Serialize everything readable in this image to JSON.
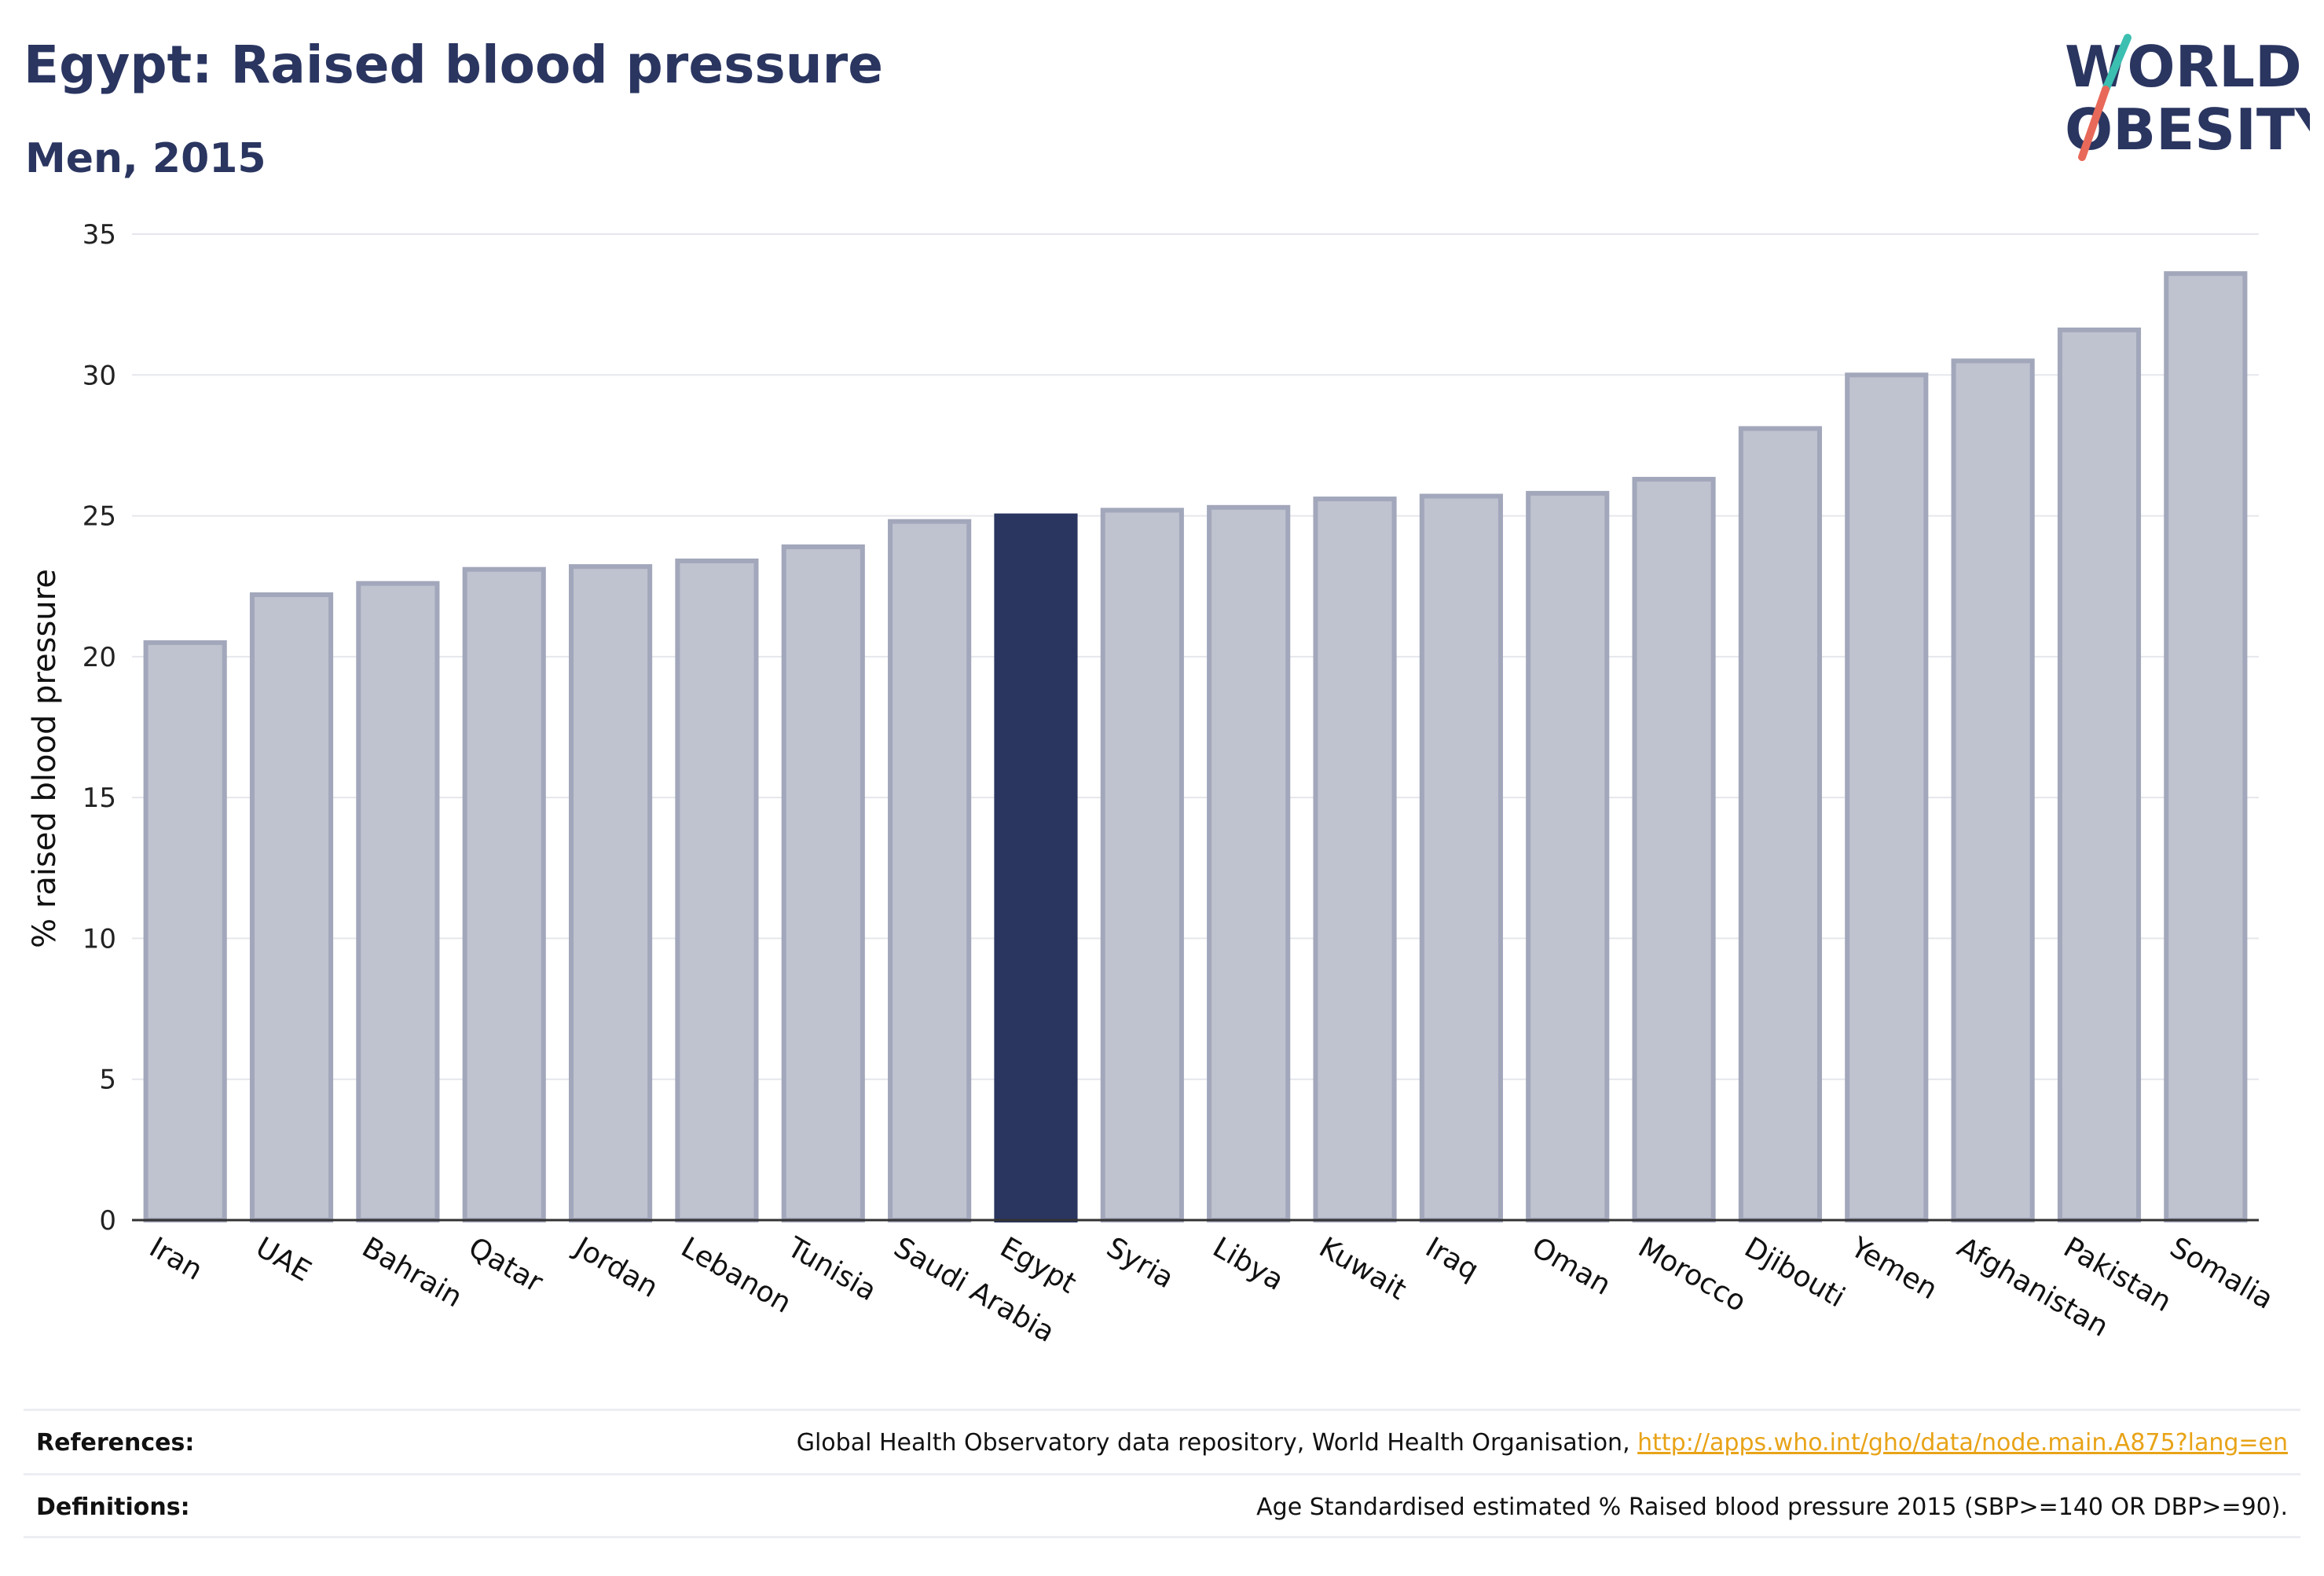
{
  "header": {
    "title": "Egypt: Raised blood pressure",
    "subtitle": "Men, 2015",
    "logo_line1": "WORLD",
    "logo_line2": "OBESITY"
  },
  "colors": {
    "highlight": "#2a3560",
    "bar": "#bfc2cf",
    "bar_border": "#a2a7bb",
    "title": "#2a3560",
    "link": "#e8a317",
    "logo_teal": "#3bbfb1",
    "logo_red": "#e8695a"
  },
  "chart_data": {
    "type": "bar",
    "categories": [
      "Iran",
      "UAE",
      "Bahrain",
      "Qatar",
      "Jordan",
      "Lebanon",
      "Tunisia",
      "Saudi Arabia",
      "Egypt",
      "Syria",
      "Libya",
      "Kuwait",
      "Iraq",
      "Oman",
      "Morocco",
      "Djibouti",
      "Yemen",
      "Afghanistan",
      "Pakistan",
      "Somalia"
    ],
    "values": [
      20.5,
      22.2,
      22.6,
      23.1,
      23.2,
      23.4,
      23.9,
      24.8,
      25.0,
      25.2,
      25.3,
      25.6,
      25.7,
      25.8,
      26.3,
      28.1,
      30.0,
      30.5,
      31.6,
      33.6
    ],
    "highlight": "Egypt",
    "ylabel": "% raised blood pressure",
    "xlabel": "",
    "ylim": [
      0,
      35
    ],
    "yticks": [
      0,
      5,
      10,
      15,
      20,
      25,
      30,
      35
    ],
    "grid": true
  },
  "footer": {
    "references_label": "References:",
    "references_text": "Global Health Observatory data repository, World Health Organisation, ",
    "references_link": "http://apps.who.int/gho/data/node.main.A875?lang=en",
    "definitions_label": "Definitions:",
    "definitions_text": "Age Standardised estimated % Raised blood pressure 2015 (SBP>=140 OR DBP>=90)."
  }
}
